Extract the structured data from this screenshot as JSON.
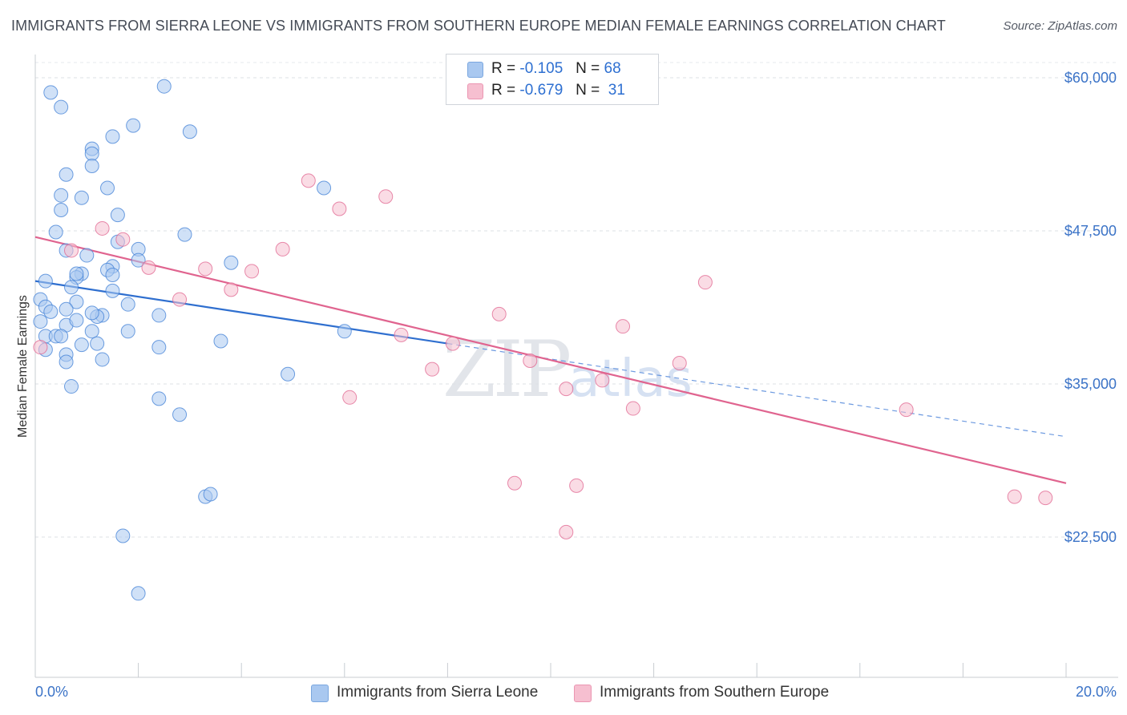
{
  "title": "IMMIGRANTS FROM SIERRA LEONE VS IMMIGRANTS FROM SOUTHERN EUROPE MEDIAN FEMALE EARNINGS CORRELATION CHART",
  "source": "Source: ZipAtlas.com",
  "watermark": {
    "zip": "ZIP",
    "atlas": "atlas"
  },
  "legend": {
    "r_label": "R =",
    "n_label": "N =",
    "rows": [
      {
        "r": "-0.105",
        "n": "68",
        "color": "#a9c8f0"
      },
      {
        "r": "-0.679",
        "n": "31",
        "color": "#f6bfd0"
      }
    ]
  },
  "bottom_legend": [
    {
      "label": "Immigrants from Sierra Leone",
      "color": "#a9c8f0"
    },
    {
      "label": "Immigrants from Southern Europe",
      "color": "#f6bfd0"
    }
  ],
  "chart_data": {
    "type": "scatter",
    "title": "IMMIGRANTS FROM SIERRA LEONE VS IMMIGRANTS FROM SOUTHERN EUROPE MEDIAN FEMALE EARNINGS CORRELATION CHART",
    "ylabel": "Median Female Earnings",
    "xlabel": "",
    "xlim": [
      0,
      20
    ],
    "ylim": [
      12500,
      61500
    ],
    "x_tick_labels": [
      "0.0%",
      "20.0%"
    ],
    "y_ticks": [
      22500,
      35000,
      47500,
      60000
    ],
    "y_tick_labels": [
      "$22,500",
      "$35,000",
      "$47,500",
      "$60,000"
    ],
    "grid": "horizontal dashed",
    "legend_position": "top-center",
    "series": [
      {
        "name": "Immigrants from Sierra Leone",
        "color": "#3f7fd6",
        "fill": "#a9c8f0",
        "points": [
          [
            0.3,
            58.8
          ],
          [
            0.5,
            57.6
          ],
          [
            2.5,
            59.3
          ],
          [
            1.9,
            56.1
          ],
          [
            3.0,
            55.6
          ],
          [
            1.5,
            55.2
          ],
          [
            1.1,
            54.2
          ],
          [
            1.1,
            53.8
          ],
          [
            1.1,
            52.8
          ],
          [
            0.6,
            52.1
          ],
          [
            1.4,
            51.0
          ],
          [
            0.5,
            50.4
          ],
          [
            0.9,
            50.2
          ],
          [
            0.5,
            49.2
          ],
          [
            1.6,
            48.8
          ],
          [
            0.4,
            47.4
          ],
          [
            1.6,
            46.6
          ],
          [
            2.0,
            46.0
          ],
          [
            0.6,
            45.9
          ],
          [
            1.0,
            45.5
          ],
          [
            2.0,
            45.1
          ],
          [
            3.8,
            44.9
          ],
          [
            1.5,
            44.6
          ],
          [
            1.4,
            44.3
          ],
          [
            0.9,
            44.0
          ],
          [
            0.8,
            43.7
          ],
          [
            0.2,
            43.4
          ],
          [
            0.7,
            42.9
          ],
          [
            1.5,
            42.6
          ],
          [
            0.1,
            41.9
          ],
          [
            0.8,
            41.7
          ],
          [
            0.2,
            41.3
          ],
          [
            0.6,
            41.1
          ],
          [
            1.3,
            40.6
          ],
          [
            1.2,
            40.5
          ],
          [
            2.4,
            40.6
          ],
          [
            0.1,
            40.1
          ],
          [
            0.6,
            39.8
          ],
          [
            1.8,
            39.3
          ],
          [
            1.1,
            39.3
          ],
          [
            0.2,
            38.9
          ],
          [
            0.4,
            38.9
          ],
          [
            1.2,
            38.3
          ],
          [
            0.9,
            38.2
          ],
          [
            2.4,
            38.0
          ],
          [
            3.6,
            38.5
          ],
          [
            0.2,
            37.8
          ],
          [
            0.6,
            37.4
          ],
          [
            1.3,
            37.0
          ],
          [
            0.6,
            36.8
          ],
          [
            4.9,
            35.8
          ],
          [
            0.7,
            34.8
          ],
          [
            2.4,
            33.8
          ],
          [
            2.8,
            32.5
          ],
          [
            3.3,
            25.8
          ],
          [
            3.4,
            26.0
          ],
          [
            1.7,
            22.6
          ],
          [
            2.0,
            17.9
          ],
          [
            5.6,
            51.0
          ],
          [
            6.0,
            39.3
          ],
          [
            0.8,
            44.0
          ],
          [
            1.5,
            43.9
          ],
          [
            1.1,
            40.8
          ],
          [
            0.3,
            40.9
          ],
          [
            2.9,
            47.2
          ],
          [
            1.8,
            41.5
          ],
          [
            0.5,
            38.9
          ],
          [
            0.8,
            40.2
          ]
        ]
      },
      {
        "name": "Immigrants from Southern Europe",
        "color": "#e0648f",
        "fill": "#f6bfd0",
        "points": [
          [
            0.1,
            38.0
          ],
          [
            1.3,
            47.7
          ],
          [
            1.7,
            46.8
          ],
          [
            0.7,
            45.9
          ],
          [
            2.2,
            44.5
          ],
          [
            3.3,
            44.4
          ],
          [
            4.2,
            44.2
          ],
          [
            3.8,
            42.7
          ],
          [
            2.8,
            41.9
          ],
          [
            5.3,
            51.6
          ],
          [
            5.9,
            49.3
          ],
          [
            6.8,
            50.3
          ],
          [
            4.8,
            46.0
          ],
          [
            9.0,
            40.7
          ],
          [
            7.1,
            39.0
          ],
          [
            8.1,
            38.3
          ],
          [
            7.7,
            36.2
          ],
          [
            9.6,
            36.9
          ],
          [
            10.3,
            34.6
          ],
          [
            11.0,
            35.3
          ],
          [
            11.6,
            33.0
          ],
          [
            12.5,
            36.7
          ],
          [
            13.0,
            43.3
          ],
          [
            11.4,
            39.7
          ],
          [
            6.1,
            33.9
          ],
          [
            16.9,
            32.9
          ],
          [
            9.3,
            26.9
          ],
          [
            10.5,
            26.7
          ],
          [
            10.3,
            22.9
          ],
          [
            19.0,
            25.8
          ],
          [
            19.6,
            25.7
          ]
        ]
      }
    ],
    "trend_lines": [
      {
        "series": "Immigrants from Sierra Leone",
        "solid_x": [
          0,
          8
        ],
        "y_solid": [
          43.4,
          38.3
        ],
        "dashed_x": [
          8,
          20
        ],
        "y_dashed": [
          38.3,
          30.7
        ]
      },
      {
        "series": "Immigrants from Southern Europe",
        "x": [
          0,
          20
        ],
        "y": [
          47.0,
          26.9
        ]
      }
    ]
  }
}
